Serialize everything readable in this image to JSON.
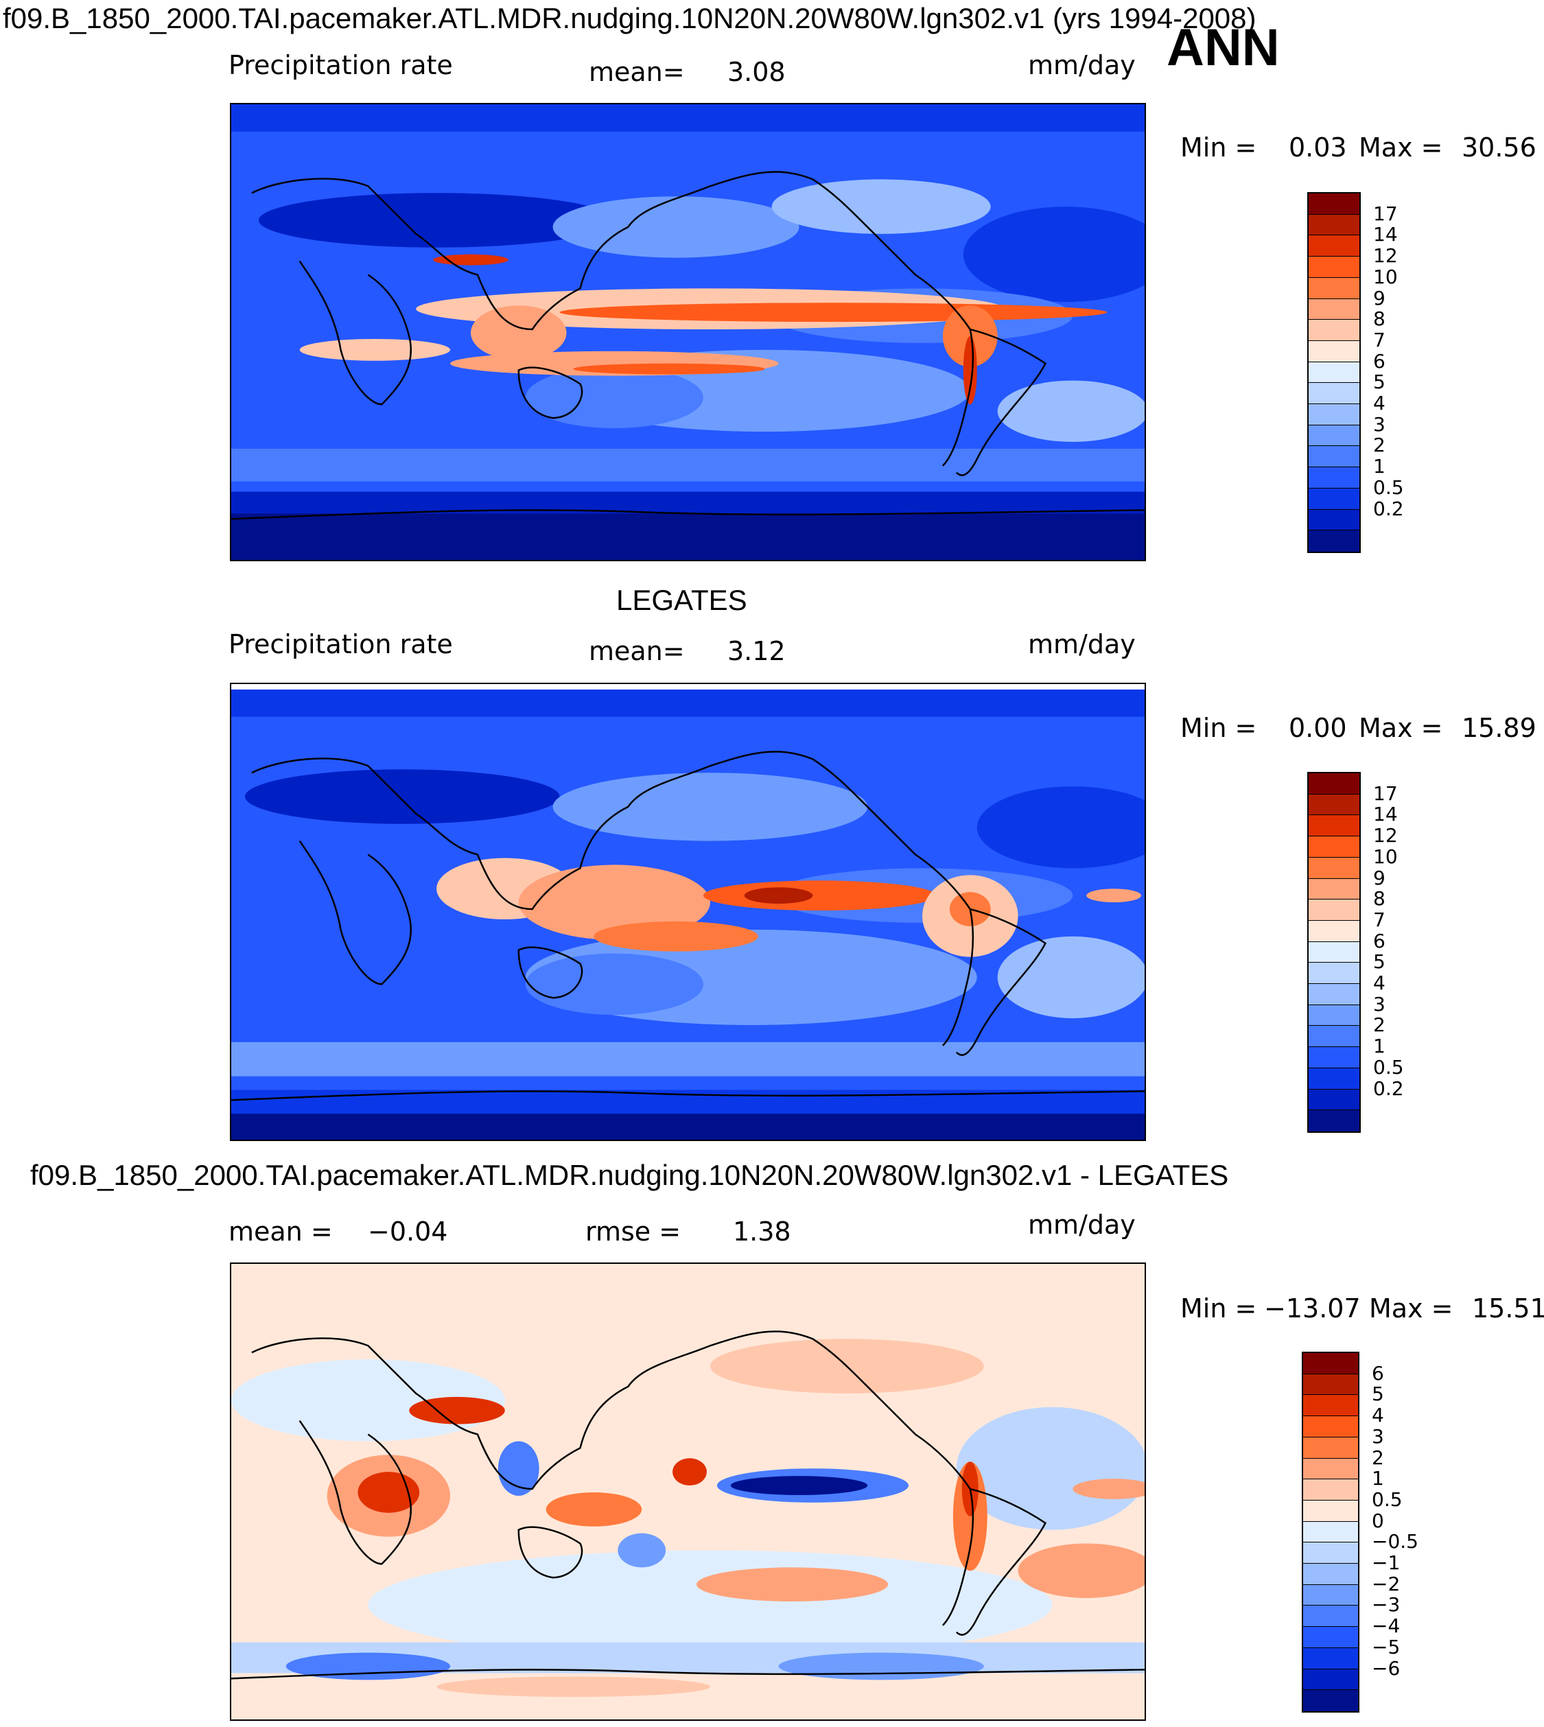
{
  "header": {
    "title": "f09.B_1850_2000.TAI.pacemaker.ATL.MDR.nudging.10N20N.20W80W.lgn302.v1 (yrs 1994-2008)",
    "season": "ANN"
  },
  "panels": [
    {
      "id": "model",
      "heading": "",
      "left_label": "Precipitation  rate",
      "mid_label": "mean=",
      "mid_value": "3.08",
      "units": "mm/day",
      "min_label": "Min  =",
      "min_value": "0.03",
      "max_label": "Max  =",
      "max_value": "30.56",
      "colorbar": {
        "colors": [
          "#7f0000",
          "#b31d00",
          "#e03000",
          "#ff5a1a",
          "#ff7a3c",
          "#ffa27a",
          "#ffc8ad",
          "#ffe8da",
          "#dfeeff",
          "#bcd6ff",
          "#99bdff",
          "#6e9dff",
          "#4a7dff",
          "#2558ff",
          "#0a38e8",
          "#0020c4",
          "#00108c"
        ],
        "ticks": [
          "17",
          "14",
          "12",
          "10",
          "9",
          "8",
          "7",
          "6",
          "5",
          "4",
          "3",
          "2",
          "1",
          "0.5",
          "0.2"
        ]
      }
    },
    {
      "id": "obs",
      "heading": "LEGATES",
      "left_label": "Precipitation  rate",
      "mid_label": "mean=",
      "mid_value": "3.12",
      "units": "mm/day",
      "min_label": "Min  =",
      "min_value": "0.00",
      "max_label": "Max  =",
      "max_value": "15.89",
      "colorbar": {
        "colors": [
          "#7f0000",
          "#b31d00",
          "#e03000",
          "#ff5a1a",
          "#ff7a3c",
          "#ffa27a",
          "#ffc8ad",
          "#ffe8da",
          "#dfeeff",
          "#bcd6ff",
          "#99bdff",
          "#6e9dff",
          "#4a7dff",
          "#2558ff",
          "#0a38e8",
          "#0020c4",
          "#00108c"
        ],
        "ticks": [
          "17",
          "14",
          "12",
          "10",
          "9",
          "8",
          "7",
          "6",
          "5",
          "4",
          "3",
          "2",
          "1",
          "0.5",
          "0.2"
        ]
      }
    },
    {
      "id": "diff",
      "heading": "f09.B_1850_2000.TAI.pacemaker.ATL.MDR.nudging.10N20N.20W80W.lgn302.v1 - LEGATES",
      "left_label": "mean  =",
      "left_value": "−0.04",
      "mid_label": "rmse  =",
      "mid_value": "1.38",
      "units": "mm/day",
      "min_label": "Min  =",
      "min_value": "−13.07",
      "max_label": "Max  =",
      "max_value": "15.51",
      "colorbar": {
        "colors": [
          "#7f0000",
          "#b31d00",
          "#e03000",
          "#ff5a1a",
          "#ff7a3c",
          "#ffa27a",
          "#ffc8ad",
          "#ffe8da",
          "#dfeeff",
          "#bcd6ff",
          "#99bdff",
          "#6e9dff",
          "#4a7dff",
          "#2558ff",
          "#0a38e8",
          "#0020c4",
          "#00108c"
        ],
        "ticks": [
          "6",
          "5",
          "4",
          "3",
          "2",
          "1",
          "0.5",
          "0",
          "−0.5",
          "−1",
          "−2",
          "−3",
          "−4",
          "−5",
          "−6"
        ]
      }
    }
  ]
}
